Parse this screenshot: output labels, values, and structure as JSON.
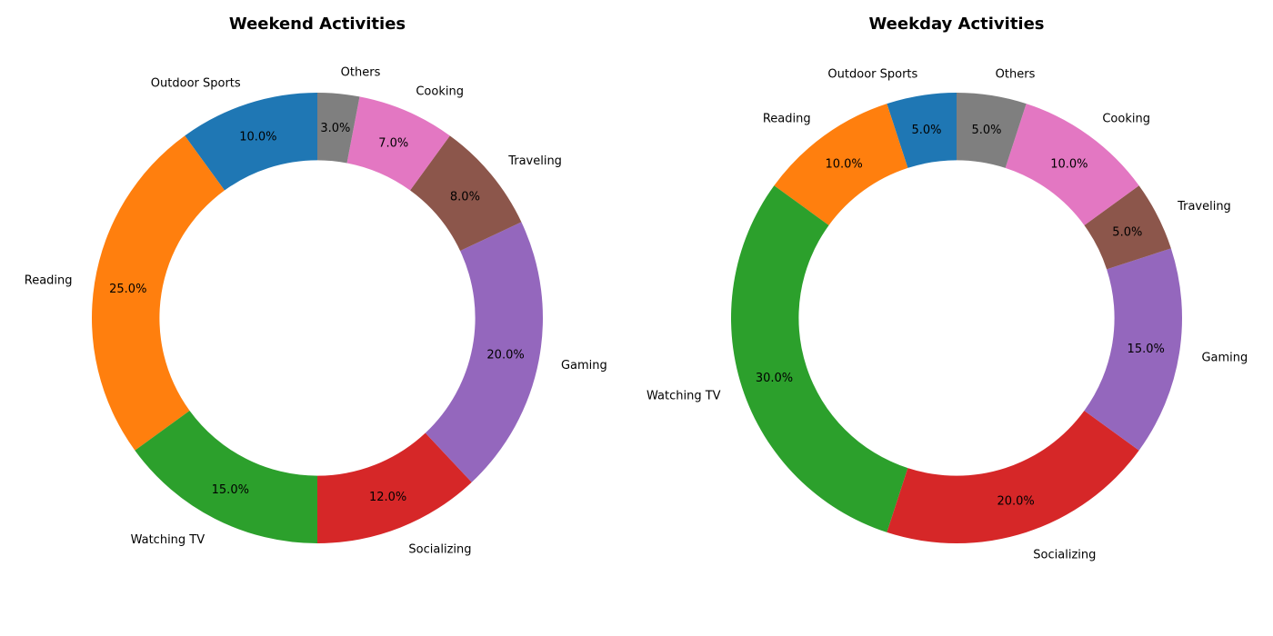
{
  "chart_data": [
    {
      "type": "pie",
      "donut": true,
      "title": "Weekend Activities",
      "categories": [
        "Outdoor Sports",
        "Reading",
        "Watching TV",
        "Socializing",
        "Gaming",
        "Traveling",
        "Cooking",
        "Others"
      ],
      "values": [
        10,
        25,
        15,
        12,
        20,
        8,
        7,
        3
      ],
      "value_labels": [
        "10.0%",
        "25.0%",
        "15.0%",
        "12.0%",
        "20.0%",
        "8.0%",
        "7.0%",
        "3.0%"
      ],
      "colors": [
        "#1f77b4",
        "#ff7f0e",
        "#2ca02c",
        "#d62728",
        "#9467bd",
        "#8c564b",
        "#e377c2",
        "#7f7f7f"
      ]
    },
    {
      "type": "pie",
      "donut": true,
      "title": "Weekday Activities",
      "categories": [
        "Outdoor Sports",
        "Reading",
        "Watching TV",
        "Socializing",
        "Gaming",
        "Traveling",
        "Cooking",
        "Others"
      ],
      "values": [
        5,
        10,
        30,
        20,
        15,
        5,
        10,
        5
      ],
      "value_labels": [
        "5.0%",
        "10.0%",
        "30.0%",
        "20.0%",
        "15.0%",
        "5.0%",
        "10.0%",
        "5.0%"
      ],
      "colors": [
        "#1f77b4",
        "#ff7f0e",
        "#2ca02c",
        "#d62728",
        "#9467bd",
        "#8c564b",
        "#e377c2",
        "#7f7f7f"
      ]
    }
  ]
}
